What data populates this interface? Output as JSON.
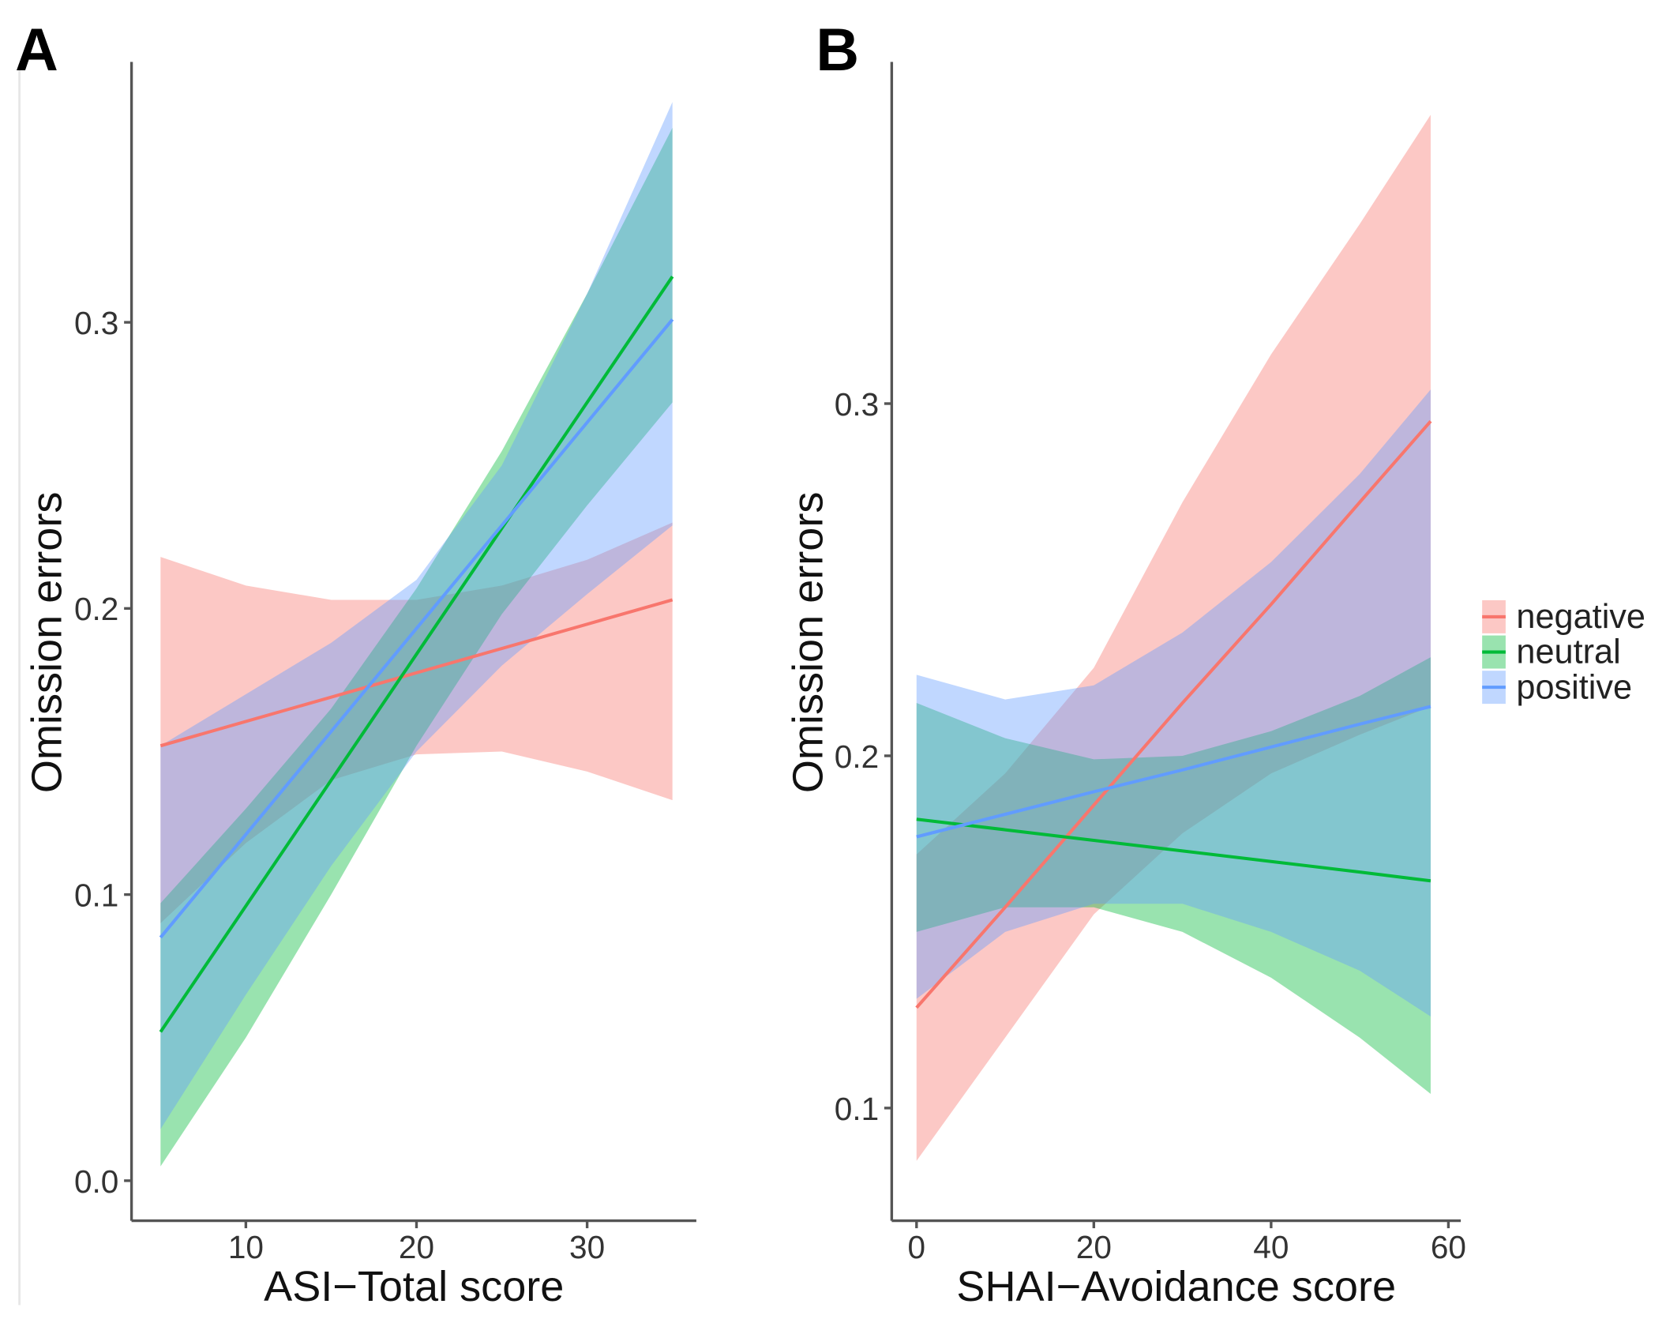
{
  "colors": {
    "negative": "#F8766D",
    "neutral": "#00BA38",
    "positive": "#619CFF"
  },
  "legend": {
    "position": "right",
    "entries": [
      "negative",
      "neutral",
      "positive"
    ]
  },
  "chart_data": [
    {
      "type": "line",
      "panel_label": "A",
      "xlabel": "ASI−Total score",
      "ylabel": "Omission errors",
      "xlim": [
        3.3,
        36.4
      ],
      "ylim": [
        -0.014,
        0.391
      ],
      "xticks": [
        10,
        20,
        30
      ],
      "yticks": [
        0.0,
        0.1,
        0.2,
        0.3
      ],
      "ytick_labels": [
        "0.0",
        "0.1",
        "0.2",
        "0.3"
      ],
      "grid": false,
      "x": [
        5,
        10,
        15,
        20,
        25,
        30,
        35
      ],
      "series": [
        {
          "name": "negative",
          "fit": [
            0.152,
            0.1605,
            0.169,
            0.1775,
            0.186,
            0.1945,
            0.203
          ],
          "lower": [
            0.09,
            0.118,
            0.14,
            0.149,
            0.15,
            0.143,
            0.133
          ],
          "upper": [
            0.218,
            0.208,
            0.203,
            0.203,
            0.208,
            0.217,
            0.23
          ]
        },
        {
          "name": "neutral",
          "fit": [
            0.052,
            0.096,
            0.14,
            0.184,
            0.228,
            0.272,
            0.316
          ],
          "lower": [
            0.005,
            0.05,
            0.1,
            0.152,
            0.198,
            0.236,
            0.272
          ],
          "upper": [
            0.097,
            0.13,
            0.165,
            0.207,
            0.255,
            0.31,
            0.368
          ]
        },
        {
          "name": "positive",
          "fit": [
            0.085,
            0.121,
            0.157,
            0.193,
            0.229,
            0.265,
            0.301
          ],
          "lower": [
            0.018,
            0.065,
            0.11,
            0.15,
            0.18,
            0.205,
            0.229
          ],
          "upper": [
            0.152,
            0.17,
            0.188,
            0.21,
            0.25,
            0.31,
            0.377
          ]
        }
      ]
    },
    {
      "type": "line",
      "panel_label": "B",
      "xlabel": "SHAI−Avoidance score",
      "ylabel": "Omission errors",
      "xlim": [
        -2.8,
        61.4
      ],
      "ylim": [
        0.068,
        0.397
      ],
      "xticks": [
        0,
        20,
        40,
        60
      ],
      "yticks": [
        0.1,
        0.2,
        0.3
      ],
      "ytick_labels": [
        "0.1",
        "0.2",
        "0.3"
      ],
      "grid": false,
      "x": [
        0,
        10,
        20,
        30,
        40,
        50,
        58
      ],
      "series": [
        {
          "name": "negative",
          "fit": [
            0.1285,
            0.157,
            0.186,
            0.215,
            0.243,
            0.272,
            0.295
          ],
          "lower": [
            0.085,
            0.12,
            0.155,
            0.178,
            0.195,
            0.206,
            0.214
          ],
          "upper": [
            0.172,
            0.195,
            0.225,
            0.272,
            0.314,
            0.351,
            0.382
          ]
        },
        {
          "name": "neutral",
          "fit": [
            0.182,
            0.179,
            0.176,
            0.173,
            0.17,
            0.167,
            0.1645
          ],
          "lower": [
            0.15,
            0.157,
            0.157,
            0.15,
            0.137,
            0.12,
            0.104
          ],
          "upper": [
            0.215,
            0.205,
            0.199,
            0.2,
            0.207,
            0.217,
            0.228
          ]
        },
        {
          "name": "positive",
          "fit": [
            0.177,
            0.1834,
            0.1898,
            0.196,
            0.2025,
            0.209,
            0.214
          ],
          "lower": [
            0.131,
            0.15,
            0.158,
            0.158,
            0.15,
            0.139,
            0.126
          ],
          "upper": [
            0.223,
            0.216,
            0.22,
            0.235,
            0.255,
            0.28,
            0.304
          ]
        }
      ]
    }
  ]
}
